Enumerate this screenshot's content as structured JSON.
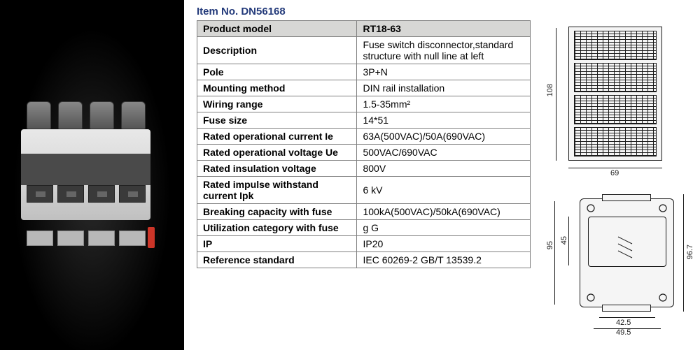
{
  "item_no_label": "Item No.  DN56168",
  "table": {
    "header": {
      "label": "Product model",
      "value": "RT18-63"
    },
    "rows": [
      {
        "label": "Description",
        "value": "Fuse switch disconnector,standard structure with null line at left"
      },
      {
        "label": "Pole",
        "value": "3P+N"
      },
      {
        "label": "Mounting method",
        "value": "DIN rail installation"
      },
      {
        "label": "Wiring range",
        "value": "1.5-35mm²"
      },
      {
        "label": "Fuse size",
        "value": "14*51"
      },
      {
        "label": "Rated operational current Ie",
        "value": "63A(500VAC)/50A(690VAC)"
      },
      {
        "label": "Rated operational voltage Ue",
        "value": "500VAC/690VAC"
      },
      {
        "label": "Rated insulation voltage",
        "value": "800V"
      },
      {
        "label": "Rated impulse withstand current Ipk",
        "value": "6 kV"
      },
      {
        "label": "Breaking capacity with fuse",
        "value": "100kA(500VAC)/50kA(690VAC)"
      },
      {
        "label": "Utilization category with fuse",
        "value": "g G"
      },
      {
        "label": "IP",
        "value": "IP20"
      },
      {
        "label": "Reference standard",
        "value": "IEC  60269-2   GB/T 13539.2"
      }
    ]
  },
  "drawings": {
    "top": {
      "height": "108",
      "width": "69"
    },
    "bottom": {
      "h_outer": "95",
      "h_inner": "45",
      "h_right": "96.7",
      "w_inner": "42.5",
      "w_outer": "49.5"
    }
  },
  "colors": {
    "heading": "#233a7a",
    "header_bg": "#d7d7d5",
    "border": "#808080",
    "drawing_line": "#1a1a1a"
  }
}
